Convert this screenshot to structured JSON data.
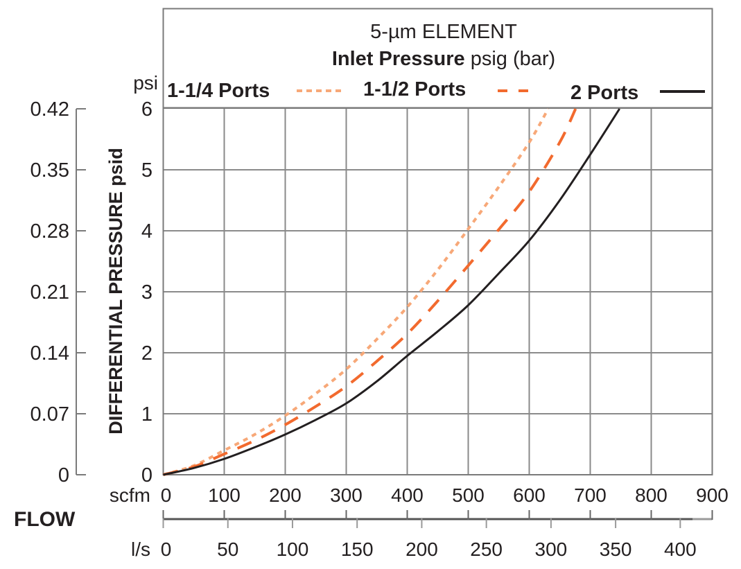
{
  "chart_data": {
    "type": "line",
    "title": "5-µm ELEMENT",
    "subtitle_bold": "Inlet Pressure",
    "subtitle_rest": " psig (bar)",
    "xlabel": "FLOW",
    "x_unit_primary": "scfm",
    "x_unit_secondary": "l/s",
    "ylabel": "DIFFERENTIAL PRESSURE psid",
    "y_unit_primary": "psi",
    "xlim": [
      0,
      900
    ],
    "ylim": [
      0,
      6
    ],
    "grid": true,
    "legend_position": "top",
    "x_ticks": [
      "0",
      "100",
      "200",
      "300",
      "400",
      "500",
      "600",
      "700",
      "800",
      "900"
    ],
    "x_ticks_secondary": [
      "0",
      "50",
      "100",
      "150",
      "200",
      "250",
      "300",
      "350",
      "400"
    ],
    "y_ticks": [
      "0",
      "1",
      "2",
      "3",
      "4",
      "5",
      "6"
    ],
    "y_ticks_secondary": [
      "0",
      "0.07",
      "0.14",
      "0.21",
      "0.28",
      "0.35",
      "0.42"
    ],
    "series": [
      {
        "name": "1-1/4 Ports",
        "style": "dotted",
        "color": "#f7a878",
        "x": [
          0,
          50,
          100,
          150,
          200,
          250,
          300,
          350,
          400,
          450,
          500,
          550,
          600,
          631
        ],
        "y": [
          0,
          0.15,
          0.4,
          0.66,
          0.97,
          1.33,
          1.73,
          2.22,
          2.75,
          3.36,
          4.03,
          4.72,
          5.45,
          6.0
        ]
      },
      {
        "name": "1-1/2 Ports",
        "style": "dashed",
        "color": "#f26a2e",
        "x": [
          0,
          50,
          100,
          150,
          200,
          250,
          300,
          350,
          400,
          450,
          500,
          550,
          600,
          650,
          676
        ],
        "y": [
          0,
          0.13,
          0.34,
          0.56,
          0.82,
          1.12,
          1.45,
          1.86,
          2.31,
          2.85,
          3.43,
          4.02,
          4.64,
          5.45,
          6.0
        ]
      },
      {
        "name": "2 Ports",
        "style": "solid",
        "color": "#231f20",
        "x": [
          0,
          50,
          100,
          150,
          200,
          250,
          300,
          350,
          400,
          450,
          500,
          550,
          600,
          650,
          700,
          748
        ],
        "y": [
          0,
          0.11,
          0.26,
          0.45,
          0.66,
          0.9,
          1.17,
          1.53,
          1.95,
          2.35,
          2.78,
          3.3,
          3.84,
          4.5,
          5.25,
          6.0
        ]
      }
    ]
  },
  "legend": {
    "items": [
      {
        "label": "1-1/4 Ports"
      },
      {
        "label": "1-1/2 Ports"
      },
      {
        "label": "2 Ports"
      }
    ]
  }
}
